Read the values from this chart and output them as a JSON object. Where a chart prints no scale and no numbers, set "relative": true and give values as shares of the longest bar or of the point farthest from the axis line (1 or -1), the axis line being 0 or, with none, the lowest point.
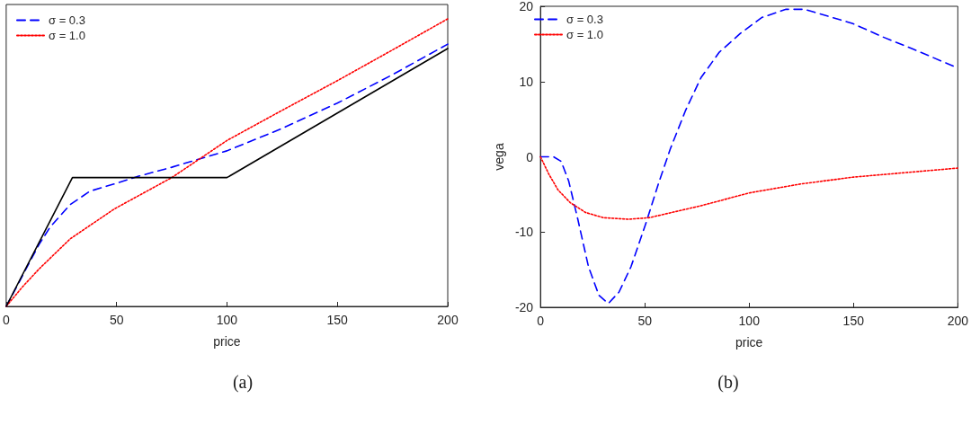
{
  "chart_data": [
    {
      "type": "line",
      "xlabel": "price",
      "relative": true,
      "tick_labels": "x",
      "xlim": [
        0,
        200
      ],
      "xticks": [
        0,
        50,
        100,
        150,
        200
      ],
      "legend": "top left",
      "marker": "none",
      "grid": false,
      "annotations": [
        "(a)"
      ],
      "series": [
        {
          "name": "σ = 0.3",
          "color": "#0000ff",
          "line_style": "dashed",
          "x": [
            0,
            5,
            10,
            15,
            20,
            29,
            38,
            49,
            60,
            75,
            100,
            125,
            150,
            175,
            200
          ],
          "values": [
            0,
            0.072,
            0.145,
            0.217,
            0.277,
            0.354,
            0.401,
            0.426,
            0.453,
            0.484,
            0.541,
            0.619,
            0.707,
            0.806,
            0.912
          ]
        },
        {
          "name": "σ = 1.0",
          "color": "#ff0000",
          "line_style": "dotted",
          "x": [
            0,
            7.5,
            15,
            29,
            49,
            75,
            100,
            125,
            150,
            175,
            200
          ],
          "values": [
            0,
            0.069,
            0.131,
            0.235,
            0.339,
            0.448,
            0.577,
            0.682,
            0.785,
            0.892,
            1
          ]
        },
        {
          "color": "#000000",
          "line_style": "solid",
          "x": [
            0,
            30,
            100,
            200
          ],
          "values": [
            0,
            0.448,
            0.448,
            0.897
          ]
        }
      ]
    },
    {
      "type": "line",
      "xlabel": "price",
      "ylabel": "vega",
      "xlim": [
        0,
        200
      ],
      "xticks": [
        0,
        50,
        100,
        150,
        200
      ],
      "ylim": [
        -20,
        20
      ],
      "yticks": [
        -20,
        -10,
        0,
        10,
        20
      ],
      "legend": "top left",
      "marker": "none",
      "grid": false,
      "annotations": [
        "(b)"
      ],
      "series": [
        {
          "name": "σ = 0.3",
          "color": "#0000ff",
          "line_style": "dashed",
          "x": [
            0,
            6.3,
            9.9,
            13.5,
            17.9,
            23,
            28,
            32.5,
            37.6,
            43.4,
            50.7,
            56.5,
            62.3,
            69.6,
            76.9,
            85.7,
            95.8,
            106,
            117.7,
            126.4,
            135.2,
            149.7,
            164.3,
            178.7,
            200
          ],
          "values": [
            0,
            0,
            -0.6,
            -3.2,
            -8.3,
            -14.6,
            -18.4,
            -19.5,
            -18,
            -14.6,
            -8.7,
            -3.6,
            1.1,
            6.2,
            10.5,
            13.9,
            16.4,
            18.5,
            19.6,
            19.6,
            18.9,
            17.7,
            15.9,
            14.3,
            11.8
          ]
        },
        {
          "name": "σ = 1.0",
          "color": "#ff0000",
          "line_style": "dotted",
          "x": [
            0,
            4,
            8.4,
            14.3,
            21.6,
            30.3,
            42,
            52,
            77,
            100,
            125,
            150,
            200
          ],
          "values": [
            0,
            -2.3,
            -4.4,
            -6.1,
            -7.4,
            -8.1,
            -8.3,
            -8.1,
            -6.5,
            -4.8,
            -3.6,
            -2.7,
            -1.5
          ]
        }
      ]
    }
  ]
}
